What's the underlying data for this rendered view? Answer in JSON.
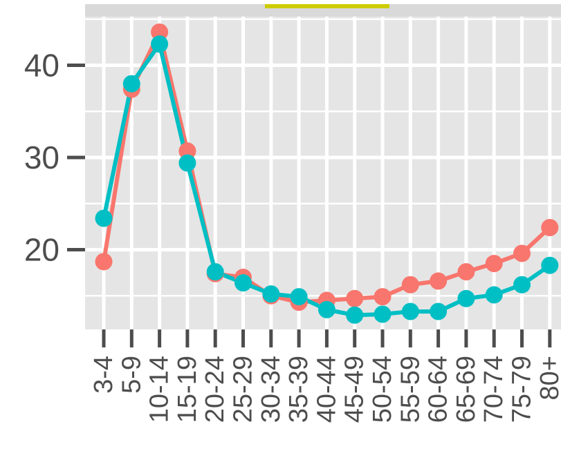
{
  "chart_data": {
    "type": "line",
    "categories": [
      "3-4",
      "5-9",
      "10-14",
      "15-19",
      "20-24",
      "25-29",
      "30-34",
      "35-39",
      "40-44",
      "45-49",
      "50-54",
      "55-59",
      "60-64",
      "65-69",
      "70-74",
      "75-79",
      "80+"
    ],
    "series": [
      {
        "color": "#F8766D",
        "values": [
          18.7,
          37.4,
          43.6,
          30.7,
          17.4,
          17.0,
          15.0,
          14.3,
          14.5,
          14.7,
          14.9,
          16.2,
          16.6,
          17.6,
          18.5,
          19.6,
          22.4
        ]
      },
      {
        "color": "#00BFC4",
        "values": [
          23.4,
          38.0,
          42.3,
          29.4,
          17.6,
          16.4,
          15.2,
          14.9,
          13.5,
          12.9,
          13.0,
          13.3,
          13.3,
          14.7,
          15.1,
          16.2,
          18.3
        ]
      }
    ],
    "yticks": [
      20,
      30,
      40
    ],
    "ylim": [
      11.5,
      45.5
    ],
    "grid": true,
    "strip_color": "#d9d9d9",
    "strip_accent_color": "#cccc00",
    "panel_color": "#e5e5e5"
  }
}
